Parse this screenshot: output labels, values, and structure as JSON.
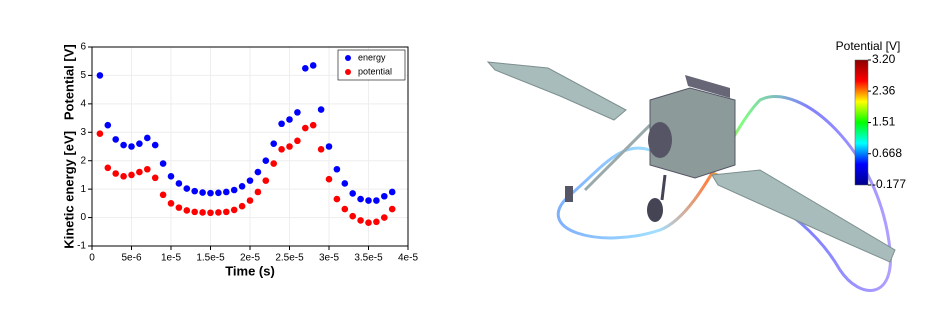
{
  "chart_data": [
    {
      "type": "scatter",
      "xlabel": "Time (s)",
      "ylabel": "Kinetic energy [eV]   Potential [V]",
      "x": [
        1e-06,
        2e-06,
        3e-06,
        4e-06,
        5e-06,
        6e-06,
        7e-06,
        8e-06,
        9e-06,
        1e-05,
        1.1e-05,
        1.2e-05,
        1.3e-05,
        1.4e-05,
        1.5e-05,
        1.6e-05,
        1.7e-05,
        1.8e-05,
        1.9e-05,
        2e-05,
        2.1e-05,
        2.2e-05,
        2.3e-05,
        2.4e-05,
        2.5e-05,
        2.6e-05,
        2.7e-05,
        2.8e-05,
        2.9e-05,
        3e-05,
        3.1e-05,
        3.2e-05,
        3.3e-05,
        3.4e-05,
        3.5e-05,
        3.6e-05,
        3.7e-05,
        3.8e-05
      ],
      "series": [
        {
          "name": "energy",
          "color": "#0000ff",
          "values": [
            5.0,
            3.25,
            2.75,
            2.55,
            2.5,
            2.6,
            2.8,
            2.55,
            1.9,
            1.45,
            1.2,
            1.02,
            0.93,
            0.88,
            0.86,
            0.87,
            0.9,
            0.97,
            1.1,
            1.3,
            1.6,
            2.0,
            2.6,
            3.3,
            3.45,
            3.7,
            5.25,
            5.35,
            3.8,
            2.5,
            1.7,
            1.2,
            0.85,
            0.65,
            0.6,
            0.6,
            0.75,
            0.9
          ]
        },
        {
          "name": "potential",
          "color": "#ff0000",
          "values": [
            2.95,
            1.75,
            1.55,
            1.45,
            1.5,
            1.6,
            1.7,
            1.4,
            0.8,
            0.5,
            0.35,
            0.25,
            0.2,
            0.18,
            0.17,
            0.18,
            0.2,
            0.27,
            0.4,
            0.6,
            0.9,
            1.3,
            1.9,
            2.4,
            2.5,
            2.7,
            3.15,
            3.25,
            2.4,
            1.35,
            0.65,
            0.3,
            0.05,
            -0.1,
            -0.18,
            -0.15,
            0.0,
            0.3
          ]
        }
      ],
      "xlim": [
        0,
        4e-05
      ],
      "xticks": [
        0,
        {
          "value": 5e-06,
          "label": "5e-6"
        },
        {
          "value": 1e-05,
          "label": "1e-5"
        },
        {
          "value": 1.5e-05,
          "label": "1.5e-5"
        },
        {
          "value": 2e-05,
          "label": "2e-5"
        },
        {
          "value": 2.5e-05,
          "label": "2.5e-5"
        },
        {
          "value": 3e-05,
          "label": "3e-5"
        },
        {
          "value": 3.5e-05,
          "label": "3.5e-5"
        },
        {
          "value": 4e-05,
          "label": "4e-5"
        }
      ],
      "ylim": [
        -1,
        6
      ],
      "yticks": [
        -1,
        0,
        1,
        2,
        3,
        4,
        5,
        6
      ],
      "grid": true,
      "legend": "top-right"
    },
    {
      "type": "colorbar",
      "title": "Potential [V]",
      "ylim": [
        -0.177,
        3.2
      ],
      "yticks": [
        {
          "value": 3.2,
          "label": "3.20"
        },
        {
          "value": 2.36,
          "label": "2.36"
        },
        {
          "value": 1.51,
          "label": "1.51"
        },
        {
          "value": 0.668,
          "label": "0.668"
        },
        {
          "value": -0.177,
          "label": "-0.177"
        }
      ],
      "colors": [
        "#00008b",
        "#0000ff",
        "#00ffff",
        "#00ff00",
        "#ffff00",
        "#ff0000",
        "#8b0000"
      ]
    }
  ]
}
